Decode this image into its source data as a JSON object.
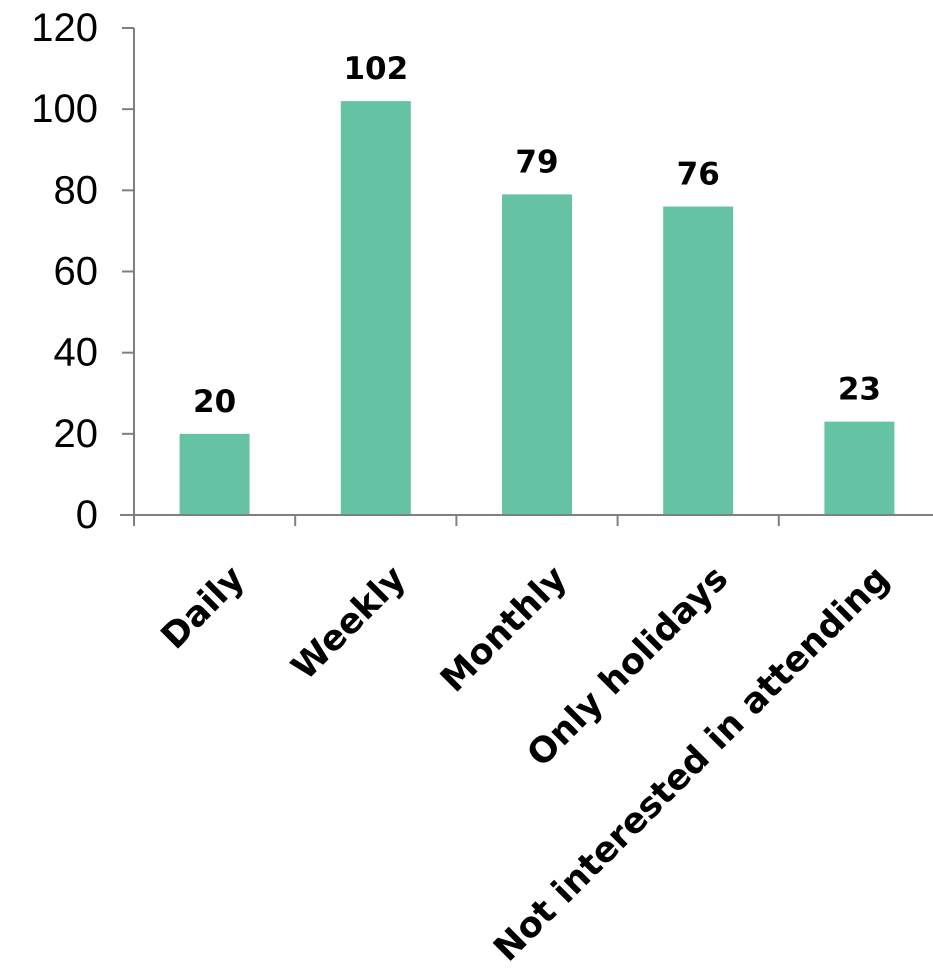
{
  "chart_data": {
    "type": "bar",
    "title": "",
    "xlabel": "",
    "ylabel": "",
    "categories": [
      "Daily",
      "Weekly",
      "Monthly",
      "Only holidays",
      "Not interested in attending"
    ],
    "values": [
      20,
      102,
      79,
      76,
      23
    ],
    "data_labels": [
      "20",
      "102",
      "79",
      "76",
      "23"
    ],
    "ylim": [
      0,
      120
    ],
    "y_ticks": [
      0,
      20,
      40,
      60,
      80,
      100,
      120
    ],
    "y_tick_labels": [
      "0",
      "20",
      "40",
      "60",
      "80",
      "100",
      "120"
    ],
    "grid": false,
    "legend": "none",
    "bar_color": "#66c2a5"
  }
}
